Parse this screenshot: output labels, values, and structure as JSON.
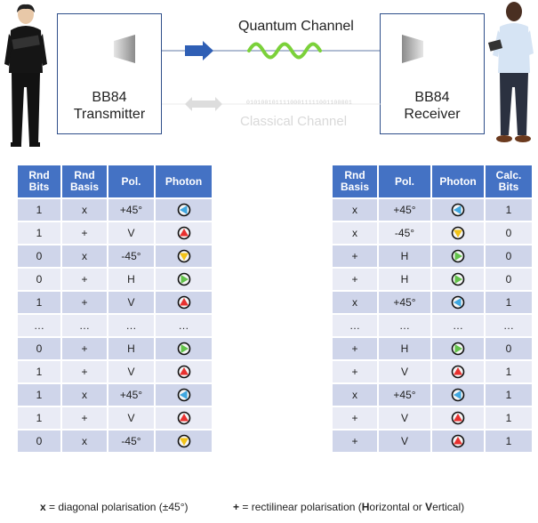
{
  "diagram": {
    "transmitter": {
      "line1": "BB84",
      "line2": "Transmitter"
    },
    "receiver": {
      "line1": "BB84",
      "line2": "Receiver"
    },
    "quantum_channel_label": "Quantum Channel",
    "classical_channel_label": "Classical Channel",
    "classical_bits": "01010010111100011111001100001",
    "colors": {
      "box_border": "#2f4f8a",
      "arrow": "#4472c4",
      "wave": "#7bd13a",
      "faded": "#d9d9d9"
    }
  },
  "photon_colors": {
    "+45°": "#3fa7e0",
    "-45°": "#f2c318",
    "V": "#e8312f",
    "H": "#62c24a"
  },
  "transmitter_table": {
    "headers": [
      "Rnd\nBits",
      "Rnd\nBasis",
      "Pol.",
      "Photon"
    ],
    "rows": [
      [
        "1",
        "x",
        "+45°",
        "+45°"
      ],
      [
        "1",
        "+",
        "V",
        "V"
      ],
      [
        "0",
        "x",
        "-45°",
        "-45°"
      ],
      [
        "0",
        "+",
        "H",
        "H"
      ],
      [
        "1",
        "+",
        "V",
        "V"
      ],
      [
        "…",
        "…",
        "…",
        "…"
      ],
      [
        "0",
        "+",
        "H",
        "H"
      ],
      [
        "1",
        "+",
        "V",
        "V"
      ],
      [
        "1",
        "x",
        "+45°",
        "+45°"
      ],
      [
        "1",
        "+",
        "V",
        "V"
      ],
      [
        "0",
        "x",
        "-45°",
        "-45°"
      ]
    ]
  },
  "receiver_table": {
    "headers": [
      "Rnd\nBasis",
      "Pol.",
      "Photon",
      "Calc.\nBits"
    ],
    "rows": [
      [
        "x",
        "+45°",
        "+45°",
        "1"
      ],
      [
        "x",
        "-45°",
        "-45°",
        "0"
      ],
      [
        "+",
        "H",
        "H",
        "0"
      ],
      [
        "+",
        "H",
        "H",
        "0"
      ],
      [
        "x",
        "+45°",
        "+45°",
        "1"
      ],
      [
        "…",
        "…",
        "…",
        "…"
      ],
      [
        "+",
        "H",
        "H",
        "0"
      ],
      [
        "+",
        "V",
        "V",
        "1"
      ],
      [
        "x",
        "+45°",
        "+45°",
        "1"
      ],
      [
        "+",
        "V",
        "V",
        "1"
      ],
      [
        "+",
        "V",
        "V",
        "1"
      ]
    ]
  },
  "legend": {
    "diag_sym": "x",
    "diag_text": " = diagonal polarisation (±45°)",
    "rect_sym": "+",
    "rect_pre": " = rectilinear polarisation (",
    "h_bold": "H",
    "h_rest": "orizontal or ",
    "v_bold": "V",
    "v_rest": "ertical)"
  }
}
